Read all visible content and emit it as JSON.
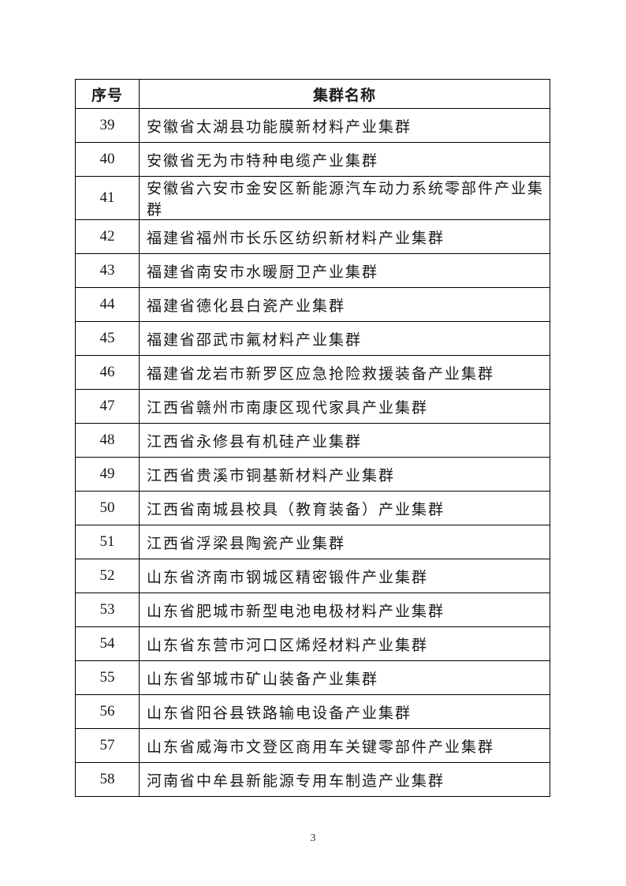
{
  "table": {
    "headers": {
      "serial": "序号",
      "name": "集群名称"
    },
    "rows": [
      {
        "no": "39",
        "name": "安徽省太湖县功能膜新材料产业集群"
      },
      {
        "no": "40",
        "name": "安徽省无为市特种电缆产业集群"
      },
      {
        "no": "41",
        "name": "安徽省六安市金安区新能源汽车动力系统零部件产业集群"
      },
      {
        "no": "42",
        "name": "福建省福州市长乐区纺织新材料产业集群"
      },
      {
        "no": "43",
        "name": "福建省南安市水暖厨卫产业集群"
      },
      {
        "no": "44",
        "name": "福建省德化县白瓷产业集群"
      },
      {
        "no": "45",
        "name": "福建省邵武市氟材料产业集群"
      },
      {
        "no": "46",
        "name": "福建省龙岩市新罗区应急抢险救援装备产业集群"
      },
      {
        "no": "47",
        "name": "江西省赣州市南康区现代家具产业集群"
      },
      {
        "no": "48",
        "name": "江西省永修县有机硅产业集群"
      },
      {
        "no": "49",
        "name": "江西省贵溪市铜基新材料产业集群"
      },
      {
        "no": "50",
        "name": "江西省南城县校具（教育装备）产业集群"
      },
      {
        "no": "51",
        "name": "江西省浮梁县陶瓷产业集群"
      },
      {
        "no": "52",
        "name": "山东省济南市钢城区精密锻件产业集群"
      },
      {
        "no": "53",
        "name": "山东省肥城市新型电池电极材料产业集群"
      },
      {
        "no": "54",
        "name": "山东省东营市河口区烯烃材料产业集群"
      },
      {
        "no": "55",
        "name": "山东省邹城市矿山装备产业集群"
      },
      {
        "no": "56",
        "name": "山东省阳谷县铁路输电设备产业集群"
      },
      {
        "no": "57",
        "name": "山东省威海市文登区商用车关键零部件产业集群"
      },
      {
        "no": "58",
        "name": "河南省中牟县新能源专用车制造产业集群"
      }
    ]
  },
  "footer": {
    "page_number": "3"
  }
}
